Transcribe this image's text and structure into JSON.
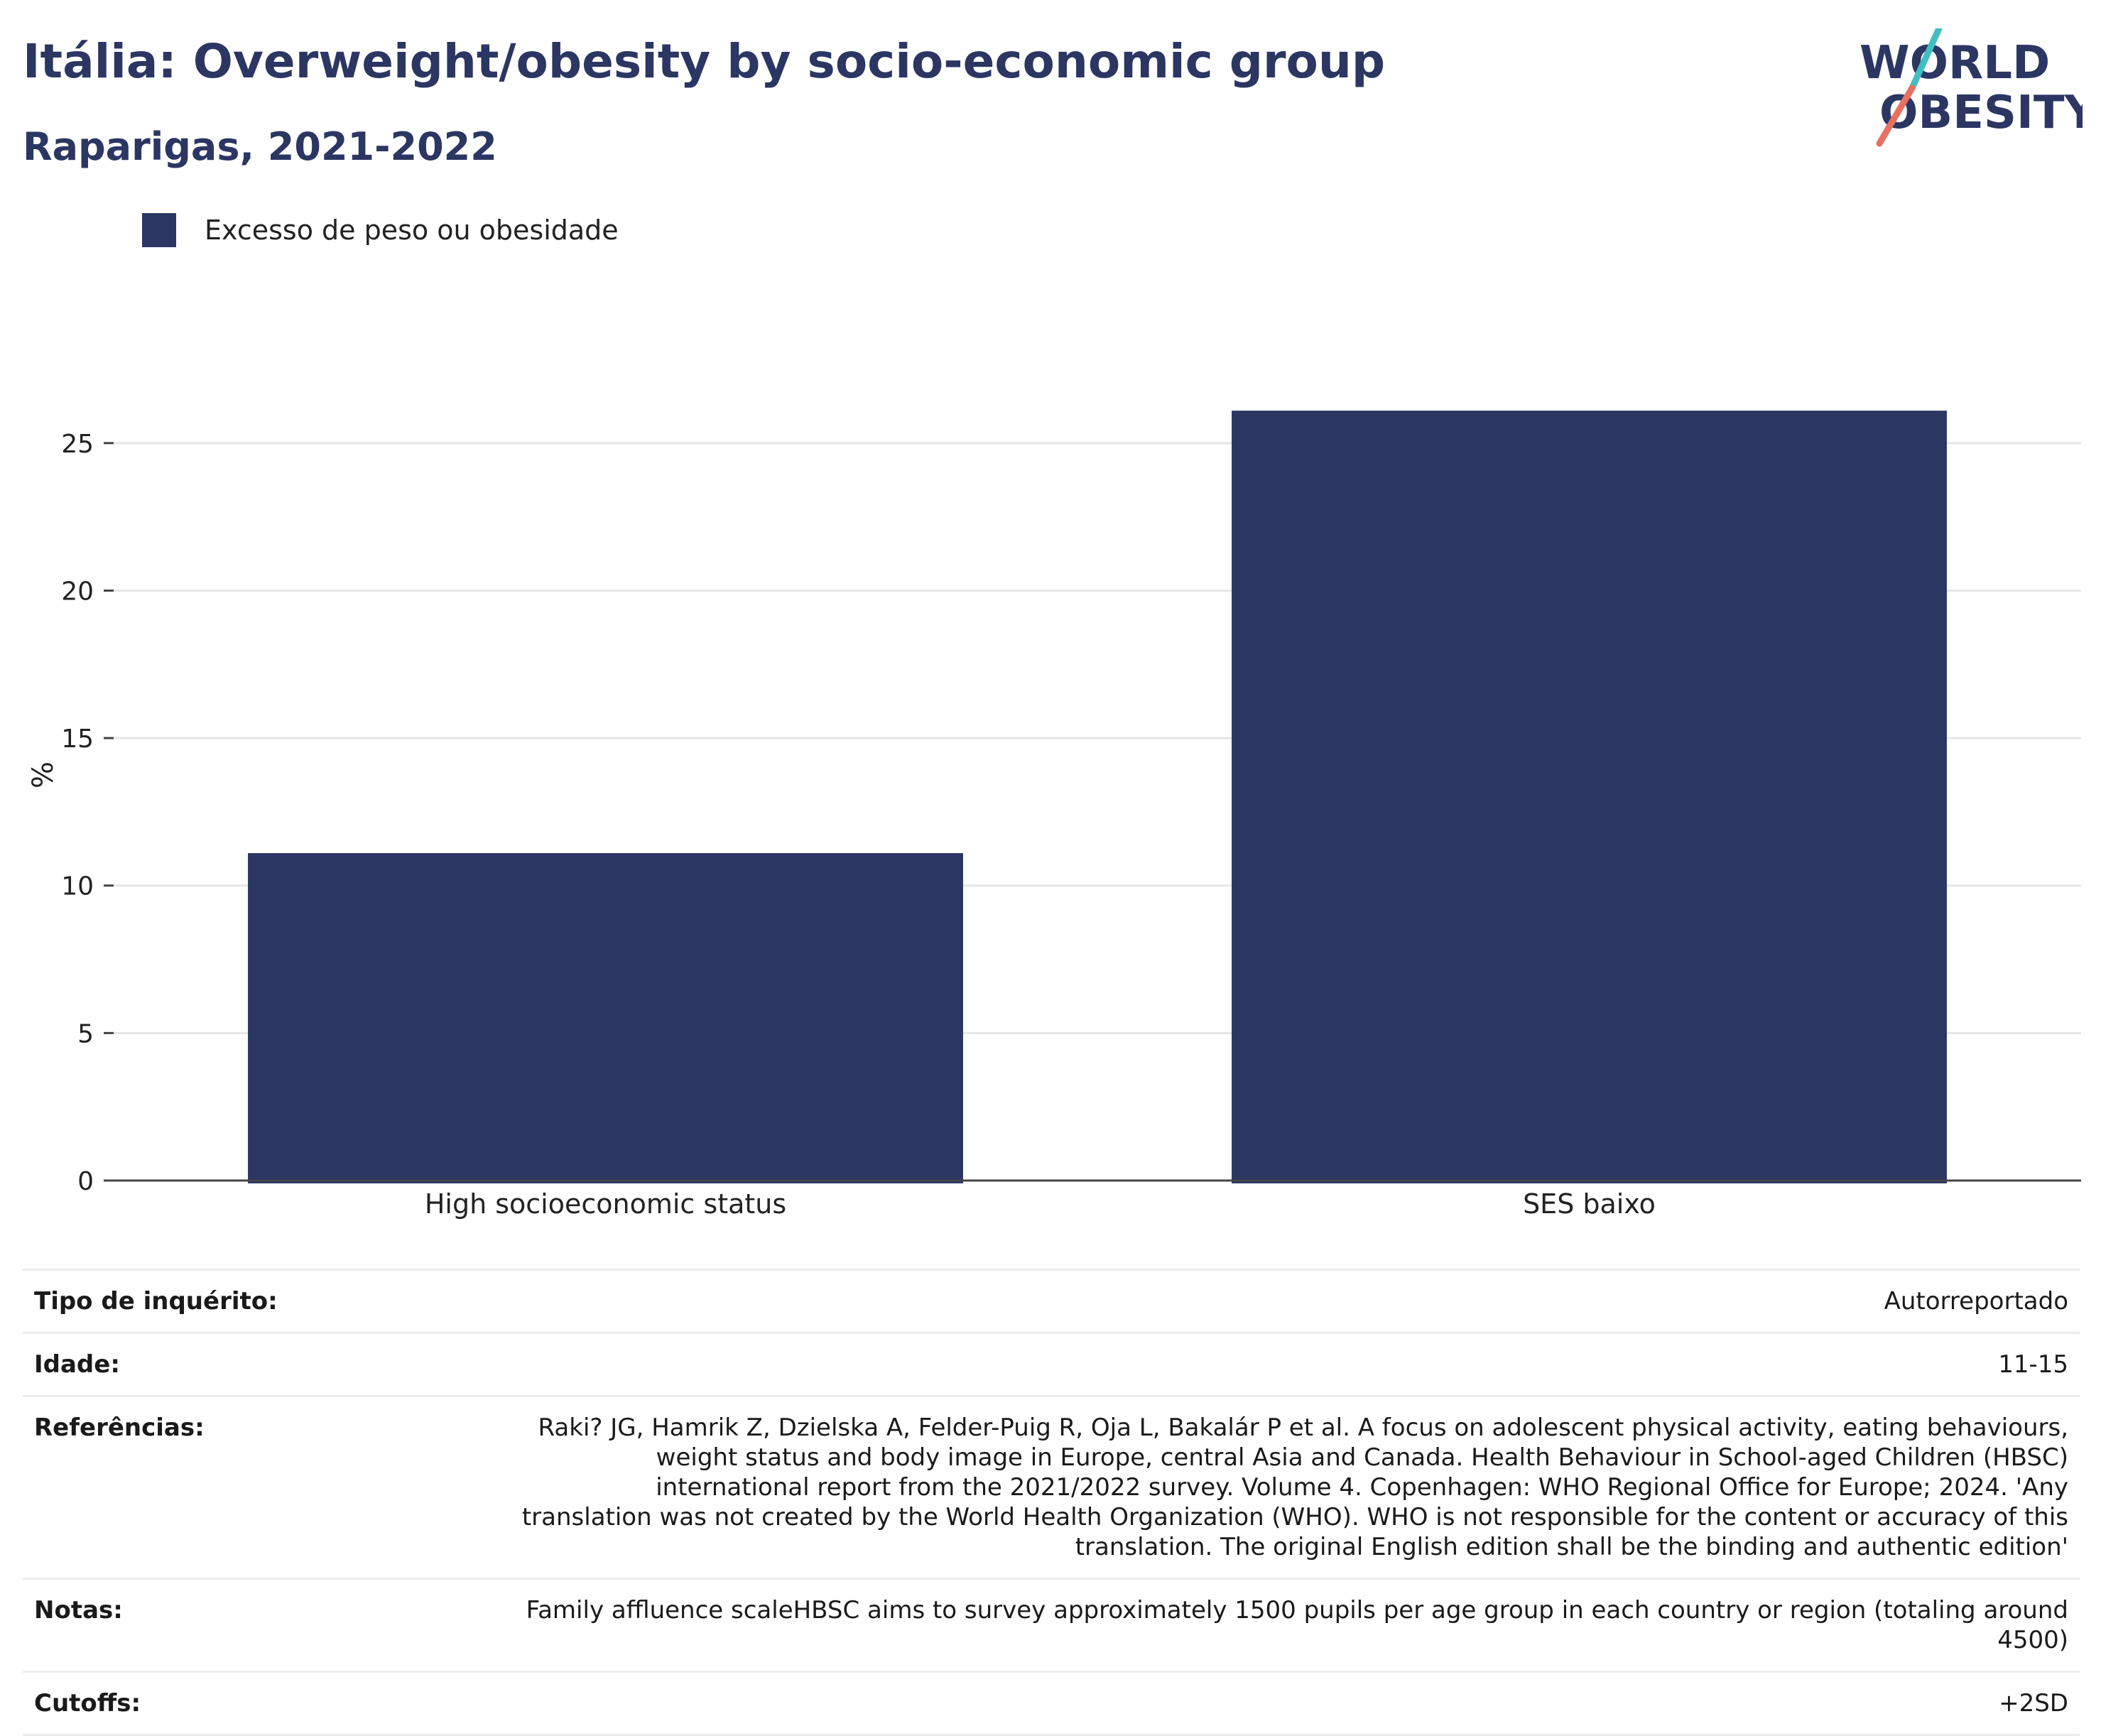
{
  "header": {
    "title": "Itália: Overweight/obesity by socio-economic group",
    "subtitle": "Raparigas, 2021-2022"
  },
  "logo": {
    "line1": "WORLD",
    "line2": "OBESITY"
  },
  "legend": {
    "label": "Excesso de peso ou obesidade",
    "color": "#2b3663"
  },
  "chart_data": {
    "type": "bar",
    "categories": [
      "High socioeconomic status",
      "SES baixo"
    ],
    "series": [
      {
        "name": "Excesso de peso ou obesidade",
        "values": [
          11.1,
          26.1
        ]
      }
    ],
    "ylabel": "%",
    "ylim": [
      0,
      27.5
    ],
    "yticks": [
      0,
      5,
      10,
      15,
      20,
      25
    ],
    "grid": true,
    "legend_position": "top-left",
    "bar_color": "#2b3663"
  },
  "meta": {
    "rows": [
      {
        "label": "Tipo de inquérito:",
        "value": "Autorreportado"
      },
      {
        "label": "Idade:",
        "value": "11-15"
      },
      {
        "label": "Referências:",
        "value": "Raki? JG, Hamrik Z, Dzielska A, Felder-Puig R, Oja L, Bakalár P et al. A focus on adolescent physical activity, eating behaviours, weight status and body image in Europe, central Asia and Canada. Health Behaviour in School-aged Children (HBSC) international report from the 2021/2022 survey. Volume 4. Copenhagen: WHO Regional Office for Europe; 2024. 'Any translation was not created by the World Health Organization (WHO). WHO is not responsible for the content or accuracy of this translation. The original English edition shall be the binding and authentic edition'"
      },
      {
        "label": "Notas:",
        "value": "Family affluence scaleHBSC aims to survey approximately 1500 pupils per age group in each country or region (totaling around 4500)"
      },
      {
        "label": "Cutoffs:",
        "value": "+2SD"
      }
    ]
  }
}
